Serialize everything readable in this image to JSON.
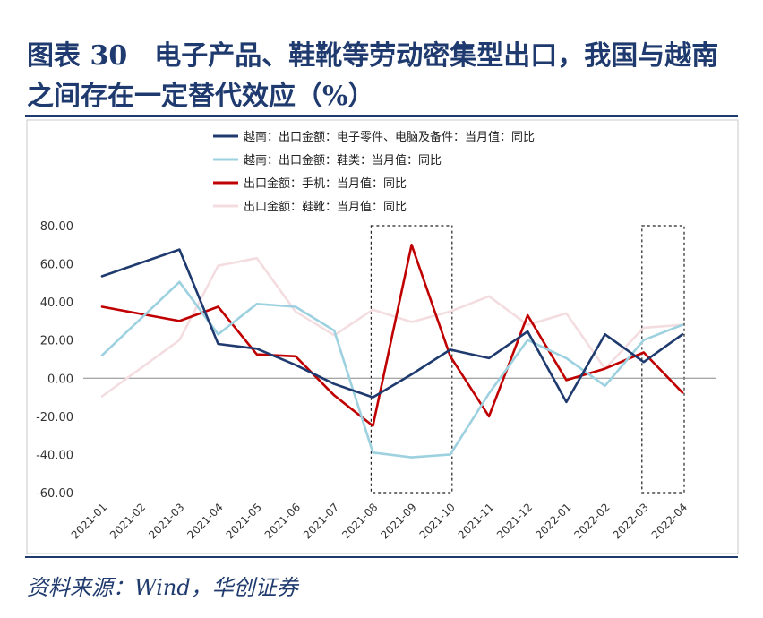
{
  "header": {
    "title": "图表 30　电子产品、鞋靴等劳动密集型出口，我国与越南之间存在一定替代效应（%）"
  },
  "footer": {
    "source": "资料来源：Wind，华创证券"
  },
  "chart_data": {
    "type": "line",
    "title": "",
    "xlabel": "",
    "ylabel": "",
    "ylim": [
      -60,
      80
    ],
    "yticks": [
      80,
      60,
      40,
      20,
      0,
      -20,
      -40,
      -60
    ],
    "ytick_labels": [
      "80.00",
      "60.00",
      "40.00",
      "20.00",
      "0.00",
      "-20.00",
      "-40.00",
      "-60.00"
    ],
    "grid": false,
    "legend_position": "top",
    "x": [
      "2021-01",
      "2021-02",
      "2021-03",
      "2021-04",
      "2021-05",
      "2021-06",
      "2021-07",
      "2021-08",
      "2021-09",
      "2021-10",
      "2021-11",
      "2021-12",
      "2022-01",
      "2022-02",
      "2022-03",
      "2022-04"
    ],
    "series": [
      {
        "name": "越南：出口金额：电子零件、电脑及备件：当月值：同比",
        "color": "#1f3a6e",
        "values": [
          53.5,
          null,
          67.5,
          18,
          15.5,
          7,
          -3,
          -10,
          2,
          15,
          10.5,
          24.5,
          -12.5,
          23,
          8.5,
          23
        ]
      },
      {
        "name": "越南：出口金额：鞋类：当月值：同比",
        "color": "#9dd1e0",
        "values": [
          12,
          null,
          50.5,
          23,
          39,
          37.5,
          25,
          -39,
          -41.5,
          -40,
          -8,
          20,
          10.5,
          -4,
          20,
          28
        ]
      },
      {
        "name": "出口金额：手机：当月值：同比",
        "color": "#c00000",
        "values": [
          37.5,
          null,
          30,
          37.5,
          12.5,
          11.5,
          -9,
          -25,
          70,
          11.5,
          -20,
          33,
          -1,
          5,
          13.5,
          -7.5
        ]
      },
      {
        "name": "出口金额：鞋靴：当月值：同比",
        "color": "#f4dde0",
        "values": [
          -9.5,
          null,
          20,
          59,
          63,
          35,
          22.5,
          36,
          29.5,
          35,
          43,
          28,
          34,
          5,
          26.5,
          28
        ]
      }
    ],
    "highlight_boxes": [
      {
        "from": "2021-08",
        "to": "2021-10",
        "style": "dashed-black"
      },
      {
        "from": "2022-03",
        "to": "2022-04",
        "style": "dashed-black"
      }
    ]
  }
}
